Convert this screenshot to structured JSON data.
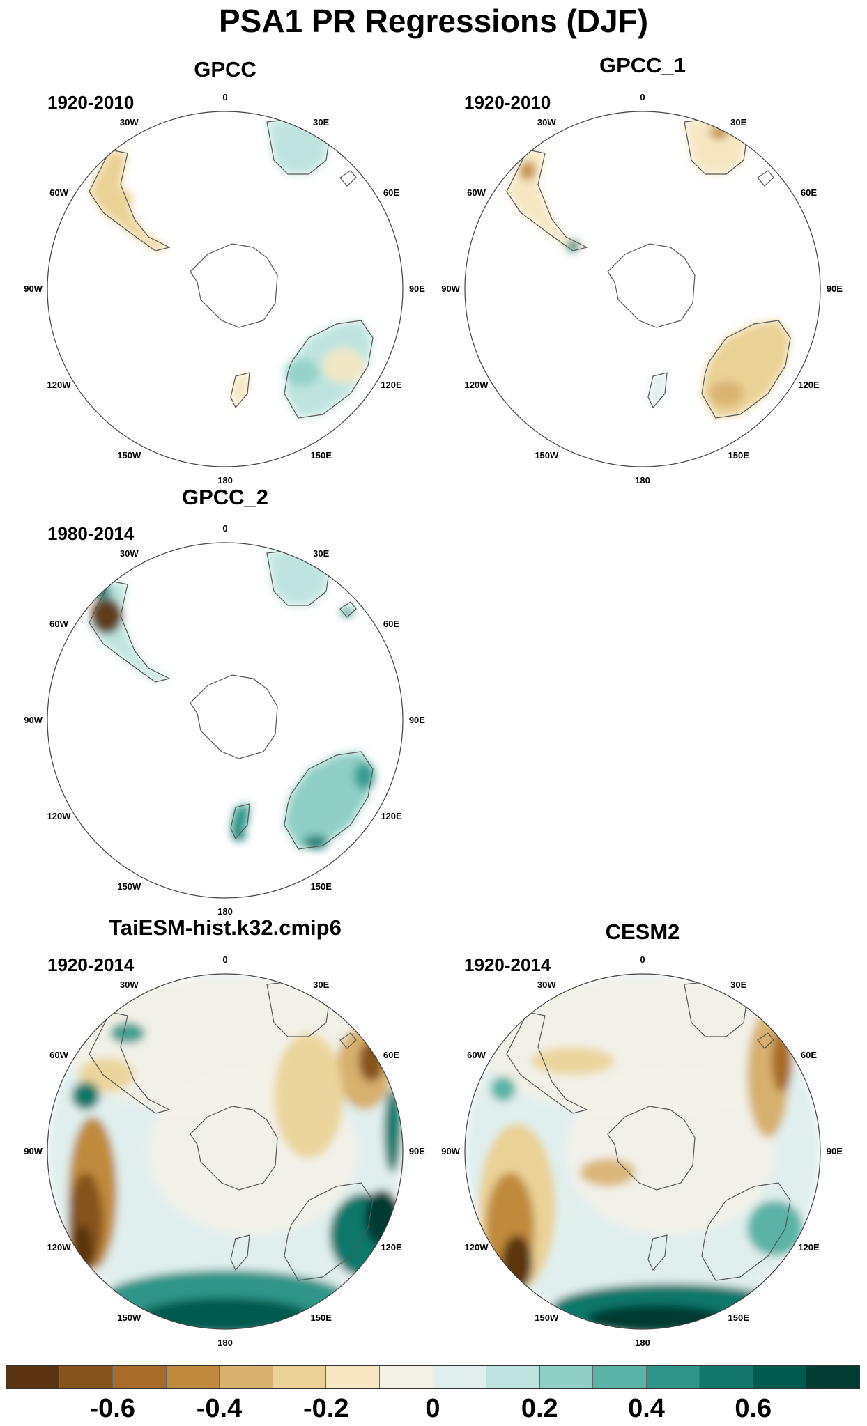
{
  "title": "PSA1 PR Regressions (DJF)",
  "lon_labels": [
    "0",
    "30E",
    "60E",
    "90E",
    "120E",
    "150E",
    "180",
    "150W",
    "120W",
    "90W",
    "60W",
    "30W"
  ],
  "panels": [
    {
      "title": "GPCC",
      "period": "1920-2010",
      "style": "obs-a"
    },
    {
      "title": "GPCC_1",
      "period": "1920-2010",
      "style": "obs-b"
    },
    {
      "title": "GPCC_2",
      "period": "1980-2014",
      "style": "obs-c"
    },
    {
      "title": "TaiESM-hist.k32.cmip6",
      "period": "1920-2014",
      "style": "model-a"
    },
    {
      "title": "CESM2",
      "period": "1920-2014",
      "style": "model-b"
    }
  ],
  "colorbar": {
    "colors": [
      "#5a3410",
      "#86531c",
      "#a86c28",
      "#c08a3e",
      "#d7b06e",
      "#ead195",
      "#f6e7c2",
      "#f4f1e7",
      "#e0efee",
      "#bfe4df",
      "#8fcfc5",
      "#5bb2a6",
      "#2e9588",
      "#11776a",
      "#035a4e",
      "#013b32"
    ],
    "labels": [
      "-0.6",
      "-0.4",
      "-0.2",
      "0",
      "0.2",
      "0.4",
      "0.6"
    ]
  }
}
